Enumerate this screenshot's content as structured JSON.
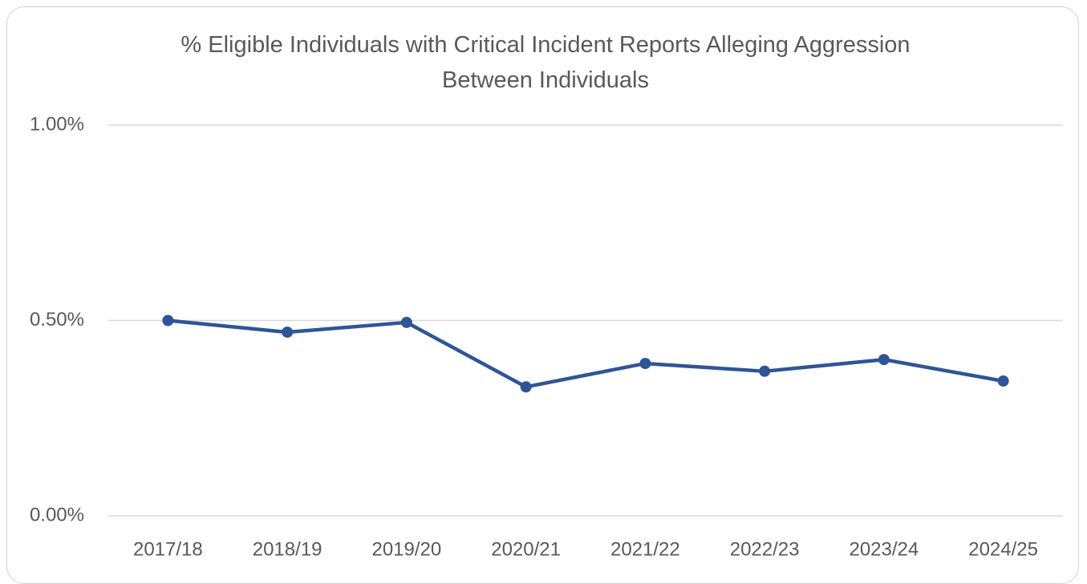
{
  "chart_data": {
    "type": "line",
    "title": "% Eligible Individuals with Critical Incident Reports Alleging Aggression Between Individuals",
    "categories": [
      "2017/18",
      "2018/19",
      "2019/20",
      "2020/21",
      "2021/22",
      "2022/23",
      "2023/24",
      "2024/25"
    ],
    "series": [
      {
        "name": "% Eligible Individuals",
        "color": "#2f5597",
        "values": [
          0.5,
          0.47,
          0.495,
          0.33,
          0.39,
          0.37,
          0.4,
          0.345
        ]
      }
    ],
    "ylim": [
      0,
      1
    ],
    "yticks": [
      {
        "value": 0,
        "label": "0.00%"
      },
      {
        "value": 0.5,
        "label": "0.50%"
      },
      {
        "value": 1,
        "label": "1.00%"
      }
    ],
    "grid": true
  }
}
